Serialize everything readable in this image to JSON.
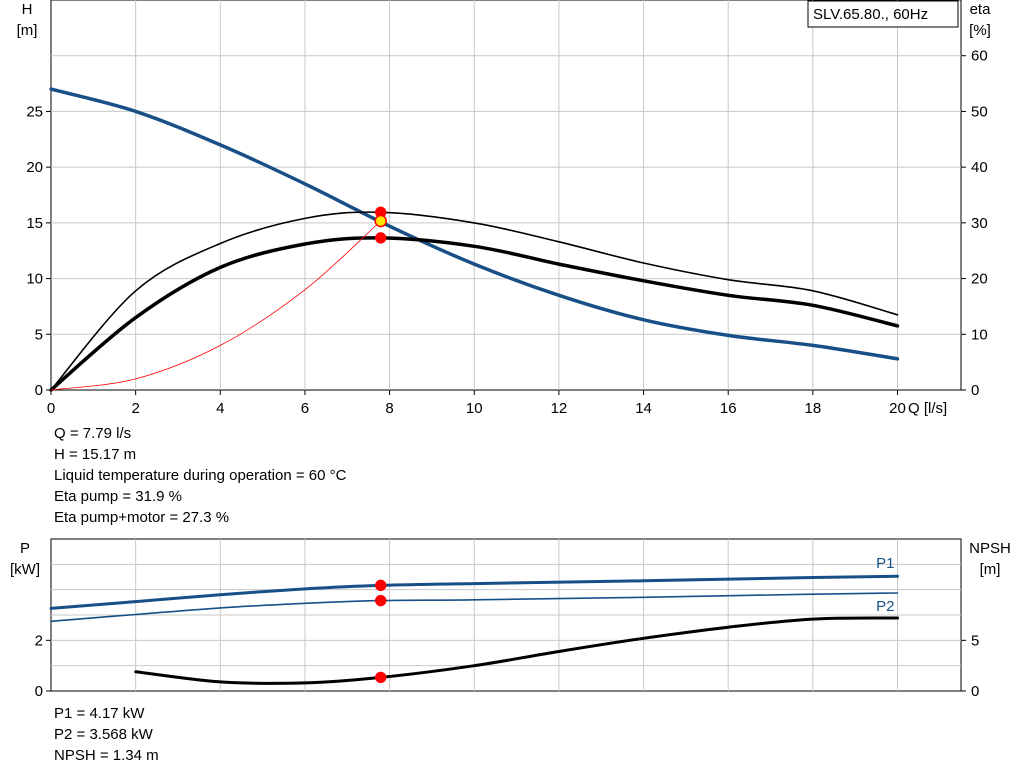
{
  "chart_data": [
    {
      "type": "line",
      "title": "SLV.65.80., 60Hz",
      "xlabel": "Q [l/s]",
      "x_ticks": [
        0,
        2,
        4,
        6,
        8,
        10,
        12,
        14,
        16,
        18,
        20
      ],
      "xlim": [
        0,
        21.5
      ],
      "left_axis": {
        "label_line1": "H",
        "label_line2": "[m]",
        "ticks": [
          0,
          5,
          10,
          15,
          20,
          25
        ],
        "ylim": [
          0,
          35
        ]
      },
      "right_axis": {
        "label_line1": "eta",
        "label_line2": "[%]",
        "ticks": [
          0,
          10,
          20,
          30,
          40,
          50,
          60
        ],
        "ylim": [
          0,
          70
        ]
      },
      "grid": true,
      "series": [
        {
          "role": "head",
          "axis": "left",
          "color": "#174f86",
          "width": 3.5,
          "x": [
            0,
            2,
            4,
            6,
            8,
            10,
            12,
            14,
            16,
            18,
            20
          ],
          "y": [
            27.0,
            25.0,
            22.0,
            18.5,
            14.7,
            11.3,
            8.5,
            6.3,
            4.9,
            4.0,
            2.8
          ]
        },
        {
          "role": "eta-pump",
          "axis": "right",
          "color": "#000000",
          "width": 1.6,
          "x": [
            0,
            2,
            4,
            6,
            7.79,
            10,
            12,
            14,
            16,
            18,
            20
          ],
          "y": [
            0,
            17.8,
            26.3,
            30.8,
            31.9,
            30.0,
            26.6,
            22.8,
            19.8,
            17.8,
            13.5
          ]
        },
        {
          "role": "eta-pump-motor",
          "axis": "right",
          "color": "#000000",
          "width": 3.5,
          "x": [
            0,
            2,
            4,
            6,
            7.79,
            10,
            12,
            14,
            16,
            18,
            20
          ],
          "y": [
            0,
            13.0,
            22.0,
            26.2,
            27.3,
            25.8,
            22.6,
            19.6,
            17.0,
            15.2,
            11.5
          ]
        },
        {
          "role": "system-curve",
          "axis": "left",
          "color": "#ff0000",
          "width": 0.8,
          "x": [
            0,
            2,
            4,
            6,
            7.79
          ],
          "y": [
            0,
            1.0,
            4.0,
            9.0,
            15.17
          ]
        }
      ],
      "markers": [
        {
          "x": 7.79,
          "y": 31.9,
          "axis": "right",
          "color": "#ff0000"
        },
        {
          "x": 7.79,
          "y": 27.3,
          "axis": "right",
          "color": "#ff0000"
        },
        {
          "x": 7.79,
          "y": 15.17,
          "axis": "left",
          "color": "#ffe600"
        }
      ]
    },
    {
      "type": "line",
      "xlim": [
        0,
        21.5
      ],
      "left_axis": {
        "label_line1": "P",
        "label_line2": "[kW]",
        "ticks": [
          0,
          2
        ],
        "ylim": [
          0,
          6
        ]
      },
      "right_axis": {
        "label_line1": "NPSH",
        "label_line2": "[m]",
        "ticks": [
          0,
          5
        ],
        "ylim": [
          0,
          15
        ]
      },
      "grid": true,
      "series": [
        {
          "name": "P1",
          "axis": "left",
          "color": "#174f86",
          "width": 3.0,
          "x": [
            0,
            2,
            4,
            6,
            7.79,
            10,
            14,
            18,
            20
          ],
          "y": [
            3.26,
            3.53,
            3.8,
            4.03,
            4.17,
            4.24,
            4.35,
            4.48,
            4.53
          ]
        },
        {
          "name": "P2",
          "axis": "left",
          "color": "#174f86",
          "width": 1.6,
          "x": [
            0,
            2,
            4,
            6,
            7.79,
            10,
            14,
            18,
            20
          ],
          "y": [
            2.75,
            3.02,
            3.28,
            3.46,
            3.568,
            3.6,
            3.7,
            3.82,
            3.87
          ]
        },
        {
          "name": "",
          "role": "NPSH",
          "axis": "right",
          "color": "#000000",
          "width": 3.0,
          "x": [
            2,
            4,
            6,
            7.79,
            10,
            12,
            14,
            16,
            18,
            20
          ],
          "y": [
            1.9,
            0.9,
            0.8,
            1.34,
            2.5,
            3.9,
            5.2,
            6.3,
            7.1,
            7.2
          ]
        }
      ],
      "markers": [
        {
          "x": 7.79,
          "y": 4.17,
          "axis": "left",
          "color": "#ff0000"
        },
        {
          "x": 7.79,
          "y": 3.568,
          "axis": "left",
          "color": "#ff0000"
        },
        {
          "x": 7.79,
          "y": 1.34,
          "axis": "right",
          "color": "#ff0000"
        }
      ]
    }
  ],
  "info_top": [
    "Q = 7.79 l/s",
    "H = 15.17 m",
    "Liquid temperature during operation = 60 °C",
    "Eta pump = 31.9 %",
    "Eta pump+motor = 27.3 %"
  ],
  "info_bottom": [
    "P1 = 4.17 kW",
    "P2 = 3.568 kW",
    "NPSH = 1.34 m"
  ]
}
